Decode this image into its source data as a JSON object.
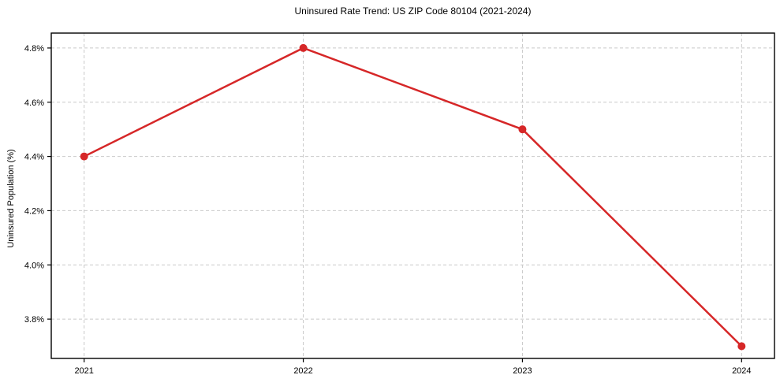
{
  "chart_data": {
    "type": "line",
    "title": "Uninsured Rate Trend: US ZIP Code 80104 (2021-2024)",
    "xlabel": "",
    "ylabel": "Uninsured Population (%)",
    "x": [
      2021,
      2022,
      2023,
      2024
    ],
    "series": [
      {
        "name": "Uninsured rate",
        "values": [
          4.4,
          4.8,
          4.5,
          3.7
        ]
      }
    ],
    "x_tick_labels": [
      "2021",
      "2022",
      "2023",
      "2024"
    ],
    "y_tick_values": [
      3.8,
      4.0,
      4.2,
      4.4,
      4.6,
      4.8
    ],
    "y_tick_labels": [
      "3.8%",
      "4.0%",
      "4.2%",
      "4.4%",
      "4.6%",
      "4.8%"
    ],
    "xlim": [
      2020.85,
      2024.15
    ],
    "ylim": [
      3.655,
      4.855
    ],
    "grid": true,
    "grid_style": "dashed",
    "legend": false,
    "colors": {
      "line": "#d62728",
      "marker": "#d62728",
      "grid": "#c9c9c9",
      "spine": "#000000",
      "background": "#ffffff"
    }
  }
}
